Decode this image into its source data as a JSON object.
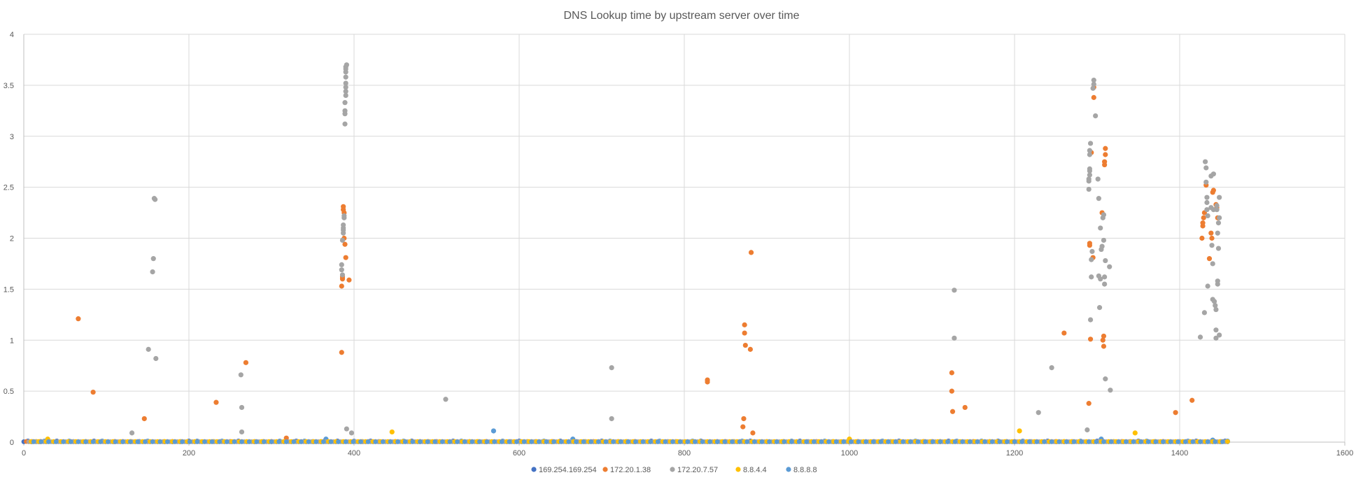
{
  "chart_data": {
    "type": "scatter",
    "title": "DNS Lookup time by upstream server over time",
    "xlabel": "",
    "ylabel": "",
    "xlim": [
      0,
      1600
    ],
    "ylim": [
      0,
      4
    ],
    "x_ticks": [
      "0",
      "200",
      "400",
      "600",
      "800",
      "1000",
      "1200",
      "1400",
      "1600"
    ],
    "y_ticks": [
      "0",
      "0.5",
      "1",
      "1.5",
      "2",
      "2.5",
      "3",
      "3.5",
      "4"
    ],
    "grid": true,
    "legend_position": "bottom",
    "series": [
      {
        "name": "169.254.169.254",
        "color": "#4472C4",
        "points": [
          [
            5,
            0.01
          ],
          [
            40,
            0.01
          ],
          [
            85,
            0.01
          ],
          [
            140,
            0.005
          ],
          [
            200,
            0.01
          ],
          [
            260,
            0.01
          ],
          [
            330,
            0.01
          ],
          [
            380,
            0.01
          ],
          [
            420,
            0.01
          ],
          [
            470,
            0.01
          ],
          [
            520,
            0.01
          ],
          [
            600,
            0.01
          ],
          [
            650,
            0.01
          ],
          [
            700,
            0.01
          ],
          [
            760,
            0.01
          ],
          [
            820,
            0.01
          ],
          [
            880,
            0.01
          ],
          [
            940,
            0.01
          ],
          [
            1000,
            0.01
          ],
          [
            1060,
            0.01
          ],
          [
            1120,
            0.01
          ],
          [
            1180,
            0.01
          ],
          [
            1240,
            0.01
          ],
          [
            1300,
            0.01
          ],
          [
            1350,
            0.01
          ],
          [
            1420,
            0.01
          ],
          [
            1455,
            0.01
          ]
        ]
      },
      {
        "name": "172.20.1.38",
        "color": "#ED7D31",
        "points": [
          [
            66,
            1.21
          ],
          [
            84,
            0.49
          ],
          [
            146,
            0.23
          ],
          [
            233,
            0.39
          ],
          [
            269,
            0.78
          ],
          [
            318,
            0.04
          ],
          [
            385,
            0.88
          ],
          [
            385,
            1.53
          ],
          [
            386,
            1.6
          ],
          [
            386,
            1.62
          ],
          [
            387,
            2.31
          ],
          [
            387,
            2.28
          ],
          [
            388,
            2.25
          ],
          [
            388,
            2.0
          ],
          [
            389,
            1.94
          ],
          [
            390,
            1.81
          ],
          [
            394,
            1.59
          ],
          [
            828,
            0.61
          ],
          [
            828,
            0.59
          ],
          [
            871,
            0.15
          ],
          [
            872,
            0.23
          ],
          [
            873,
            1.15
          ],
          [
            873,
            1.07
          ],
          [
            874,
            0.95
          ],
          [
            880,
            0.91
          ],
          [
            881,
            1.86
          ],
          [
            883,
            0.09
          ],
          [
            1124,
            0.68
          ],
          [
            1124,
            0.5
          ],
          [
            1125,
            0.3
          ],
          [
            1140,
            0.34
          ],
          [
            1260,
            1.07
          ],
          [
            1290,
            0.38
          ],
          [
            1291,
            1.95
          ],
          [
            1291,
            1.93
          ],
          [
            1292,
            1.01
          ],
          [
            1293,
            2.84
          ],
          [
            1295,
            1.81
          ],
          [
            1296,
            3.38
          ],
          [
            1296,
            3.48
          ],
          [
            1306,
            2.25
          ],
          [
            1307,
            1.0
          ],
          [
            1308,
            0.94
          ],
          [
            1308,
            1.04
          ],
          [
            1309,
            2.72
          ],
          [
            1309,
            2.75
          ],
          [
            1310,
            2.82
          ],
          [
            1310,
            2.88
          ],
          [
            1395,
            0.29
          ],
          [
            1415,
            0.41
          ],
          [
            1427,
            2.0
          ],
          [
            1428,
            2.12
          ],
          [
            1428,
            2.15
          ],
          [
            1429,
            2.2
          ],
          [
            1430,
            2.25
          ],
          [
            1432,
            2.52
          ],
          [
            1436,
            1.8
          ],
          [
            1438,
            2.05
          ],
          [
            1439,
            2.0
          ],
          [
            1440,
            2.45
          ],
          [
            1441,
            2.47
          ],
          [
            1444,
            2.33
          ],
          [
            1445,
            2.3
          ],
          [
            1446,
            2.2
          ],
          [
            20,
            0.005
          ],
          [
            110,
            0.005
          ],
          [
            180,
            0.005
          ],
          [
            250,
            0.005
          ],
          [
            300,
            0.005
          ],
          [
            450,
            0.005
          ],
          [
            500,
            0.005
          ],
          [
            560,
            0.005
          ],
          [
            640,
            0.005
          ],
          [
            690,
            0.005
          ],
          [
            740,
            0.005
          ],
          [
            850,
            0.005
          ],
          [
            960,
            0.005
          ],
          [
            1010,
            0.005
          ],
          [
            1090,
            0.005
          ],
          [
            1150,
            0.005
          ],
          [
            1200,
            0.005
          ],
          [
            1250,
            0.005
          ],
          [
            1330,
            0.005
          ],
          [
            1380,
            0.005
          ]
        ]
      },
      {
        "name": "172.20.7.57",
        "color": "#A5A5A5",
        "points": [
          [
            131,
            0.09
          ],
          [
            151,
            0.91
          ],
          [
            156,
            1.67
          ],
          [
            157,
            1.8
          ],
          [
            158,
            2.39
          ],
          [
            159,
            2.38
          ],
          [
            160,
            0.82
          ],
          [
            263,
            0.66
          ],
          [
            264,
            0.34
          ],
          [
            264,
            0.1
          ],
          [
            385,
            1.74
          ],
          [
            385,
            1.69
          ],
          [
            386,
            1.64
          ],
          [
            386,
            1.98
          ],
          [
            387,
            2.05
          ],
          [
            387,
            2.08
          ],
          [
            387,
            2.1
          ],
          [
            387,
            2.13
          ],
          [
            388,
            2.2
          ],
          [
            388,
            2.22
          ],
          [
            389,
            3.12
          ],
          [
            389,
            3.22
          ],
          [
            389,
            3.25
          ],
          [
            389,
            3.33
          ],
          [
            390,
            3.4
          ],
          [
            390,
            3.44
          ],
          [
            390,
            3.48
          ],
          [
            390,
            3.52
          ],
          [
            390,
            3.58
          ],
          [
            390,
            3.63
          ],
          [
            390,
            3.66
          ],
          [
            390,
            3.68
          ],
          [
            391,
            3.7
          ],
          [
            391,
            0.13
          ],
          [
            397,
            0.09
          ],
          [
            511,
            0.42
          ],
          [
            712,
            0.73
          ],
          [
            712,
            0.23
          ],
          [
            1127,
            1.49
          ],
          [
            1127,
            1.02
          ],
          [
            1229,
            0.29
          ],
          [
            1245,
            0.73
          ],
          [
            1288,
            0.12
          ],
          [
            1290,
            2.48
          ],
          [
            1290,
            2.56
          ],
          [
            1290,
            2.58
          ],
          [
            1291,
            2.62
          ],
          [
            1291,
            2.66
          ],
          [
            1291,
            2.68
          ],
          [
            1291,
            2.82
          ],
          [
            1291,
            2.86
          ],
          [
            1292,
            2.93
          ],
          [
            1292,
            1.2
          ],
          [
            1293,
            1.62
          ],
          [
            1293,
            1.79
          ],
          [
            1294,
            1.87
          ],
          [
            1295,
            3.47
          ],
          [
            1296,
            3.51
          ],
          [
            1296,
            3.55
          ],
          [
            1298,
            3.2
          ],
          [
            1301,
            2.58
          ],
          [
            1302,
            2.39
          ],
          [
            1302,
            1.63
          ],
          [
            1303,
            1.32
          ],
          [
            1304,
            2.1
          ],
          [
            1304,
            1.6
          ],
          [
            1305,
            1.89
          ],
          [
            1306,
            1.92
          ],
          [
            1307,
            2.2
          ],
          [
            1308,
            2.23
          ],
          [
            1308,
            1.98
          ],
          [
            1309,
            1.55
          ],
          [
            1309,
            1.62
          ],
          [
            1310,
            1.78
          ],
          [
            1310,
            0.62
          ],
          [
            1315,
            1.72
          ],
          [
            1316,
            0.51
          ],
          [
            1425,
            1.03
          ],
          [
            1430,
            1.27
          ],
          [
            1431,
            2.75
          ],
          [
            1432,
            2.69
          ],
          [
            1432,
            2.55
          ],
          [
            1433,
            2.35
          ],
          [
            1433,
            2.28
          ],
          [
            1433,
            2.4
          ],
          [
            1434,
            2.22
          ],
          [
            1434,
            1.53
          ],
          [
            1438,
            2.61
          ],
          [
            1438,
            2.3
          ],
          [
            1439,
            1.93
          ],
          [
            1440,
            1.75
          ],
          [
            1440,
            1.4
          ],
          [
            1441,
            2.63
          ],
          [
            1441,
            2.28
          ],
          [
            1442,
            1.38
          ],
          [
            1443,
            1.34
          ],
          [
            1444,
            1.1
          ],
          [
            1444,
            1.3
          ],
          [
            1444,
            1.02
          ],
          [
            1445,
            2.32
          ],
          [
            1445,
            2.28
          ],
          [
            1446,
            1.55
          ],
          [
            1446,
            1.58
          ],
          [
            1446,
            2.05
          ],
          [
            1447,
            1.9
          ],
          [
            1447,
            2.15
          ],
          [
            1448,
            2.4
          ],
          [
            1448,
            2.2
          ],
          [
            1448,
            1.05
          ],
          [
            10,
            0.005
          ],
          [
            60,
            0.005
          ],
          [
            120,
            0.005
          ],
          [
            190,
            0.005
          ],
          [
            280,
            0.005
          ],
          [
            350,
            0.005
          ],
          [
            430,
            0.005
          ],
          [
            480,
            0.005
          ],
          [
            540,
            0.005
          ],
          [
            590,
            0.005
          ],
          [
            620,
            0.005
          ],
          [
            670,
            0.005
          ],
          [
            720,
            0.005
          ],
          [
            780,
            0.005
          ],
          [
            840,
            0.005
          ],
          [
            900,
            0.005
          ],
          [
            950,
            0.005
          ],
          [
            1030,
            0.005
          ],
          [
            1100,
            0.005
          ],
          [
            1170,
            0.005
          ],
          [
            1220,
            0.005
          ],
          [
            1270,
            0.005
          ],
          [
            1340,
            0.005
          ],
          [
            1400,
            0.005
          ],
          [
            1450,
            0.005
          ]
        ]
      },
      {
        "name": "8.8.4.4",
        "color": "#FFC000",
        "points": [
          [
            29,
            0.03
          ],
          [
            446,
            0.1
          ],
          [
            1000,
            0.03
          ],
          [
            1206,
            0.11
          ],
          [
            1346,
            0.09
          ],
          [
            15,
            0.005
          ],
          [
            75,
            0.005
          ],
          [
            130,
            0.005
          ],
          [
            170,
            0.005
          ],
          [
            230,
            0.005
          ],
          [
            290,
            0.005
          ],
          [
            360,
            0.005
          ],
          [
            410,
            0.005
          ],
          [
            490,
            0.005
          ],
          [
            550,
            0.005
          ],
          [
            610,
            0.005
          ],
          [
            680,
            0.005
          ],
          [
            730,
            0.005
          ],
          [
            790,
            0.005
          ],
          [
            860,
            0.005
          ],
          [
            920,
            0.005
          ],
          [
            980,
            0.005
          ],
          [
            1050,
            0.005
          ],
          [
            1110,
            0.005
          ],
          [
            1190,
            0.005
          ],
          [
            1260,
            0.005
          ],
          [
            1320,
            0.005
          ],
          [
            1370,
            0.005
          ]
        ]
      },
      {
        "name": "8.8.8.8",
        "color": "#5B9BD5",
        "points": [
          [
            569,
            0.11
          ],
          [
            665,
            0.03
          ],
          [
            1305,
            0.03
          ],
          [
            366,
            0.03
          ],
          [
            1440,
            0.02
          ],
          [
            25,
            0.01
          ],
          [
            55,
            0.01
          ],
          [
            95,
            0.01
          ],
          [
            150,
            0.01
          ],
          [
            210,
            0.01
          ],
          [
            240,
            0.01
          ],
          [
            310,
            0.01
          ],
          [
            340,
            0.01
          ],
          [
            400,
            0.01
          ],
          [
            460,
            0.01
          ],
          [
            530,
            0.01
          ],
          [
            580,
            0.01
          ],
          [
            630,
            0.01
          ],
          [
            710,
            0.01
          ],
          [
            770,
            0.01
          ],
          [
            810,
            0.01
          ],
          [
            870,
            0.01
          ],
          [
            930,
            0.01
          ],
          [
            970,
            0.01
          ],
          [
            1040,
            0.01
          ],
          [
            1080,
            0.01
          ],
          [
            1130,
            0.01
          ],
          [
            1160,
            0.01
          ],
          [
            1210,
            0.01
          ],
          [
            1280,
            0.01
          ],
          [
            1360,
            0.01
          ],
          [
            1410,
            0.01
          ],
          [
            1458,
            0.01
          ]
        ]
      }
    ]
  }
}
